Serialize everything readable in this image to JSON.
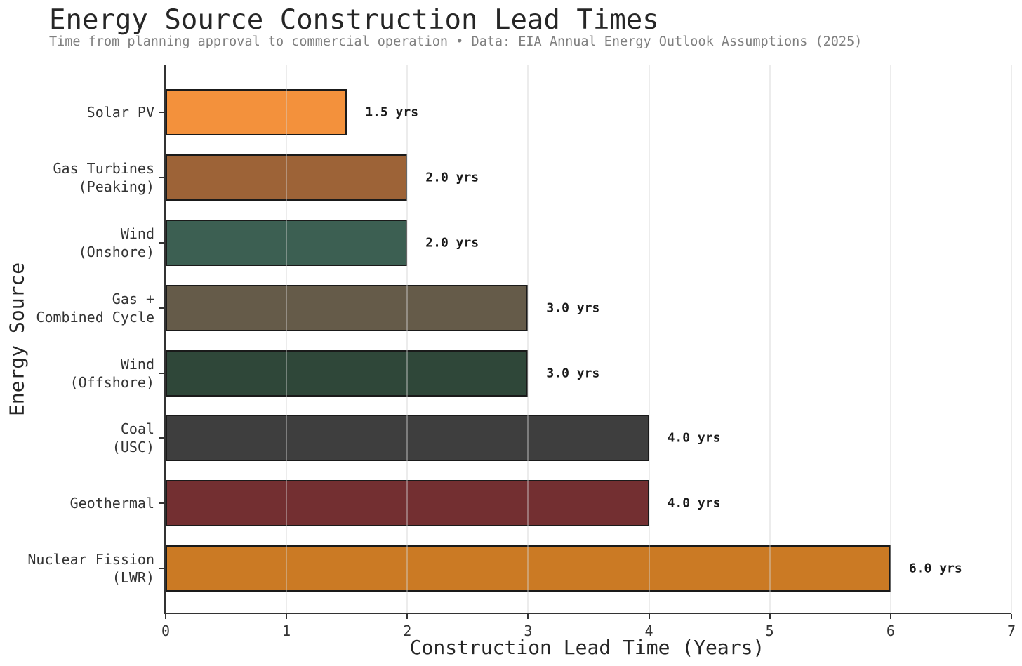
{
  "figure": {
    "background": "#ffffff",
    "text_color": "#333333",
    "title_color": "#262626",
    "subtitle_color": "#7f7f7f",
    "spine_color": "#333333",
    "gridline_color": "#d2d2d2"
  },
  "chart_data": {
    "type": "bar",
    "orientation": "horizontal",
    "title": "Energy Source Construction Lead Times",
    "subtitle": "Time from planning approval to commercial operation • Data: EIA Annual Energy Outlook Assumptions (2025)",
    "xlabel": "Construction Lead Time (Years)",
    "ylabel": "Energy Source",
    "xlim": [
      0,
      7
    ],
    "xticks": [
      0,
      1,
      2,
      3,
      4,
      5,
      6,
      7
    ],
    "grid": "vertical",
    "legend": "none",
    "categories": [
      "Solar PV",
      "Gas Turbines\n(Peaking)",
      "Wind\n(Onshore)",
      "Gas +\nCombined Cycle",
      "Wind\n(Offshore)",
      "Coal\n(USC)",
      "Geothermal",
      "Nuclear Fission\n(LWR)"
    ],
    "values": [
      1.5,
      2.0,
      2.0,
      3.0,
      3.0,
      4.0,
      4.0,
      6.0
    ],
    "value_labels": [
      "1.5 yrs",
      "2.0 yrs",
      "2.0 yrs",
      "3.0 yrs",
      "3.0 yrs",
      "4.0 yrs",
      "4.0 yrs",
      "6.0 yrs"
    ],
    "bar_colors": [
      "#F3913C",
      "#9D6337",
      "#3C5F52",
      "#655B49",
      "#2F4739",
      "#3E3E3E",
      "#732F31",
      "#CB7A24"
    ],
    "bar_edge_color": "#1a1a1a"
  }
}
